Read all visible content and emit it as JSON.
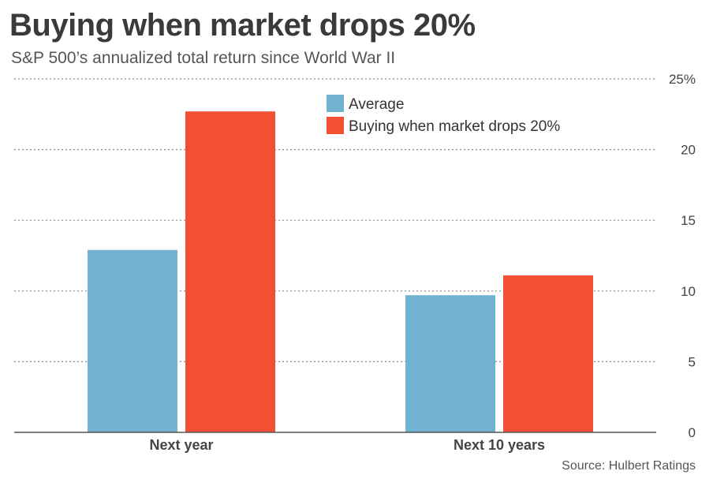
{
  "chart_data": {
    "type": "bar",
    "title": "Buying when market drops 20%",
    "subtitle": "S&P 500’s annualized total return since World War II",
    "categories": [
      "Next year",
      "Next 10 years"
    ],
    "series": [
      {
        "name": "Average",
        "values": [
          12.9,
          9.7
        ],
        "color": "#72b2d1"
      },
      {
        "name": "Buying when market drops 20%",
        "values": [
          22.7,
          11.1
        ],
        "color": "#f25035"
      }
    ],
    "ylim": [
      0,
      25
    ],
    "yticks": [
      0,
      5,
      10,
      15,
      20,
      25
    ],
    "ytick_labels": [
      "0",
      "5",
      "10",
      "15",
      "20",
      "25%"
    ],
    "grid": true,
    "legend_position": "top-center",
    "source": "Source: Hulbert Ratings"
  }
}
